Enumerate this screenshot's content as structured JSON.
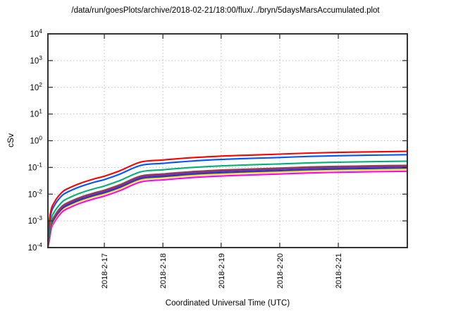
{
  "chart_data": {
    "type": "line",
    "title": "/data/run/goesPlots/archive/2018-02-21/18:00/flux/../bryn/5daysMarsAccumulated.plot",
    "xlabel": "Coordinated Universal Time (UTC)",
    "ylabel": "cSv",
    "y_scale": "log",
    "ylim": [
      0.0001,
      10000
    ],
    "grid": true,
    "legend": "none",
    "y_ticks": [
      {
        "label": "10^4",
        "exp": 4
      },
      {
        "label": "10^3",
        "exp": 3
      },
      {
        "label": "10^2",
        "exp": 2
      },
      {
        "label": "10^1",
        "exp": 1
      },
      {
        "label": "10^0",
        "exp": 0
      },
      {
        "label": "10^-1",
        "exp": -1
      },
      {
        "label": "10^-2",
        "exp": -2
      },
      {
        "label": "10^-3",
        "exp": -3
      },
      {
        "label": "10^-4",
        "exp": -4
      }
    ],
    "x_ticks": [
      {
        "label": "2018-2-17",
        "t": 0.157
      },
      {
        "label": "2018-2-18",
        "t": 0.32
      },
      {
        "label": "2018-2-19",
        "t": 0.482
      },
      {
        "label": "2018-2-20",
        "t": 0.645
      },
      {
        "label": "2018-2-21",
        "t": 0.808
      }
    ],
    "x": [
      0,
      0.004,
      0.01,
      0.018,
      0.028,
      0.043,
      0.063,
      0.092,
      0.131,
      0.157,
      0.2,
      0.259,
      0.32,
      0.396,
      0.482,
      0.563,
      0.645,
      0.729,
      0.808,
      0.886,
      1.0
    ],
    "series": [
      {
        "name": "magenta",
        "color": "#ff00ff",
        "values": [
          0.0001,
          0.00018,
          0.00054,
          0.0009,
          0.00144,
          0.00234,
          0.00324,
          0.00468,
          0.00684,
          0.00846,
          0.0135,
          0.0288,
          0.0342,
          0.0414,
          0.0477,
          0.0522,
          0.0567,
          0.0621,
          0.0657,
          0.0684,
          0.072
        ]
      },
      {
        "name": "yellow",
        "color": "#ffe000",
        "values": [
          0.0001,
          0.000215,
          0.000645,
          0.00108,
          0.00172,
          0.0028,
          0.00387,
          0.00559,
          0.00817,
          0.0101,
          0.0161,
          0.0344,
          0.0409,
          0.0495,
          0.057,
          0.0624,
          0.0677,
          0.0742,
          0.0785,
          0.0817,
          0.086
        ]
      },
      {
        "name": "royal-blue",
        "color": "#2233cc",
        "values": [
          0.0001,
          0.00024,
          0.00072,
          0.0012,
          0.00192,
          0.00312,
          0.00432,
          0.00624,
          0.00912,
          0.0113,
          0.018,
          0.0384,
          0.0456,
          0.0552,
          0.0636,
          0.0696,
          0.0756,
          0.0828,
          0.0876,
          0.0912,
          0.096
        ]
      },
      {
        "name": "purple",
        "color": "#6a35a8",
        "values": [
          0.0001,
          0.00027,
          0.00081,
          0.00135,
          0.00216,
          0.00351,
          0.00486,
          0.00702,
          0.0103,
          0.0127,
          0.0203,
          0.0432,
          0.0513,
          0.0621,
          0.0716,
          0.0783,
          0.0851,
          0.0932,
          0.0986,
          0.103,
          0.108
        ]
      },
      {
        "name": "maroon",
        "color": "#9a3b50",
        "values": [
          0.0001,
          0.0003,
          0.0009,
          0.0015,
          0.0024,
          0.0039,
          0.0054,
          0.0078,
          0.0114,
          0.0141,
          0.0225,
          0.048,
          0.057,
          0.069,
          0.0795,
          0.087,
          0.0945,
          0.104,
          0.11,
          0.114,
          0.12
        ]
      },
      {
        "name": "green",
        "color": "#00b273",
        "values": [
          0.0001,
          0.00043,
          0.0013,
          0.0022,
          0.0034,
          0.0056,
          0.0077,
          0.0112,
          0.0163,
          0.0202,
          0.0323,
          0.0688,
          0.0817,
          0.0989,
          0.114,
          0.125,
          0.135,
          0.148,
          0.157,
          0.163,
          0.172
        ]
      },
      {
        "name": "blue",
        "color": "#0055ff",
        "values": [
          0.0001,
          0.00075,
          0.00225,
          0.00375,
          0.006,
          0.00975,
          0.0135,
          0.0195,
          0.0285,
          0.035,
          0.056,
          0.12,
          0.142,
          0.172,
          0.199,
          0.218,
          0.236,
          0.259,
          0.274,
          0.285,
          0.3
        ]
      },
      {
        "name": "red",
        "color": "#ff0000",
        "values": [
          0.0001,
          0.001,
          0.003,
          0.005,
          0.008,
          0.013,
          0.018,
          0.026,
          0.038,
          0.047,
          0.075,
          0.16,
          0.19,
          0.23,
          0.265,
          0.29,
          0.315,
          0.345,
          0.365,
          0.38,
          0.4
        ]
      }
    ],
    "colors": {
      "grid": "#bcbcbc",
      "frame": "#333333",
      "background": "#ffffff"
    }
  }
}
